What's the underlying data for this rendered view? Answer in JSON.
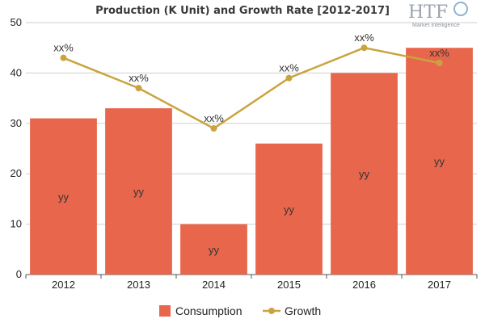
{
  "chart_data": {
    "type": "bar",
    "title": "Production (K Unit) and Growth Rate [2012-2017]",
    "categories": [
      "2012",
      "2013",
      "2014",
      "2015",
      "2016",
      "2017"
    ],
    "series": [
      {
        "name": "Consumption",
        "type": "bar",
        "values": [
          31,
          33,
          10,
          26,
          40,
          45
        ],
        "labels": [
          "yy",
          "yy",
          "yy",
          "yy",
          "yy",
          "yy"
        ],
        "color": "#e8674c"
      },
      {
        "name": "Growth",
        "type": "line",
        "values": [
          43,
          37,
          29,
          39,
          45,
          42
        ],
        "labels": [
          "xx%",
          "xx%",
          "xx%",
          "xx%",
          "xx%",
          "xx%"
        ],
        "color": "#c9a43e"
      }
    ],
    "ylim": [
      0,
      50
    ],
    "yticks": [
      0,
      10,
      20,
      30,
      40,
      50
    ],
    "xlabel": "",
    "ylabel": "",
    "grid": true,
    "legend": "bottom"
  },
  "logo": {
    "main": "HTF",
    "sub": "Market Intelligence"
  }
}
